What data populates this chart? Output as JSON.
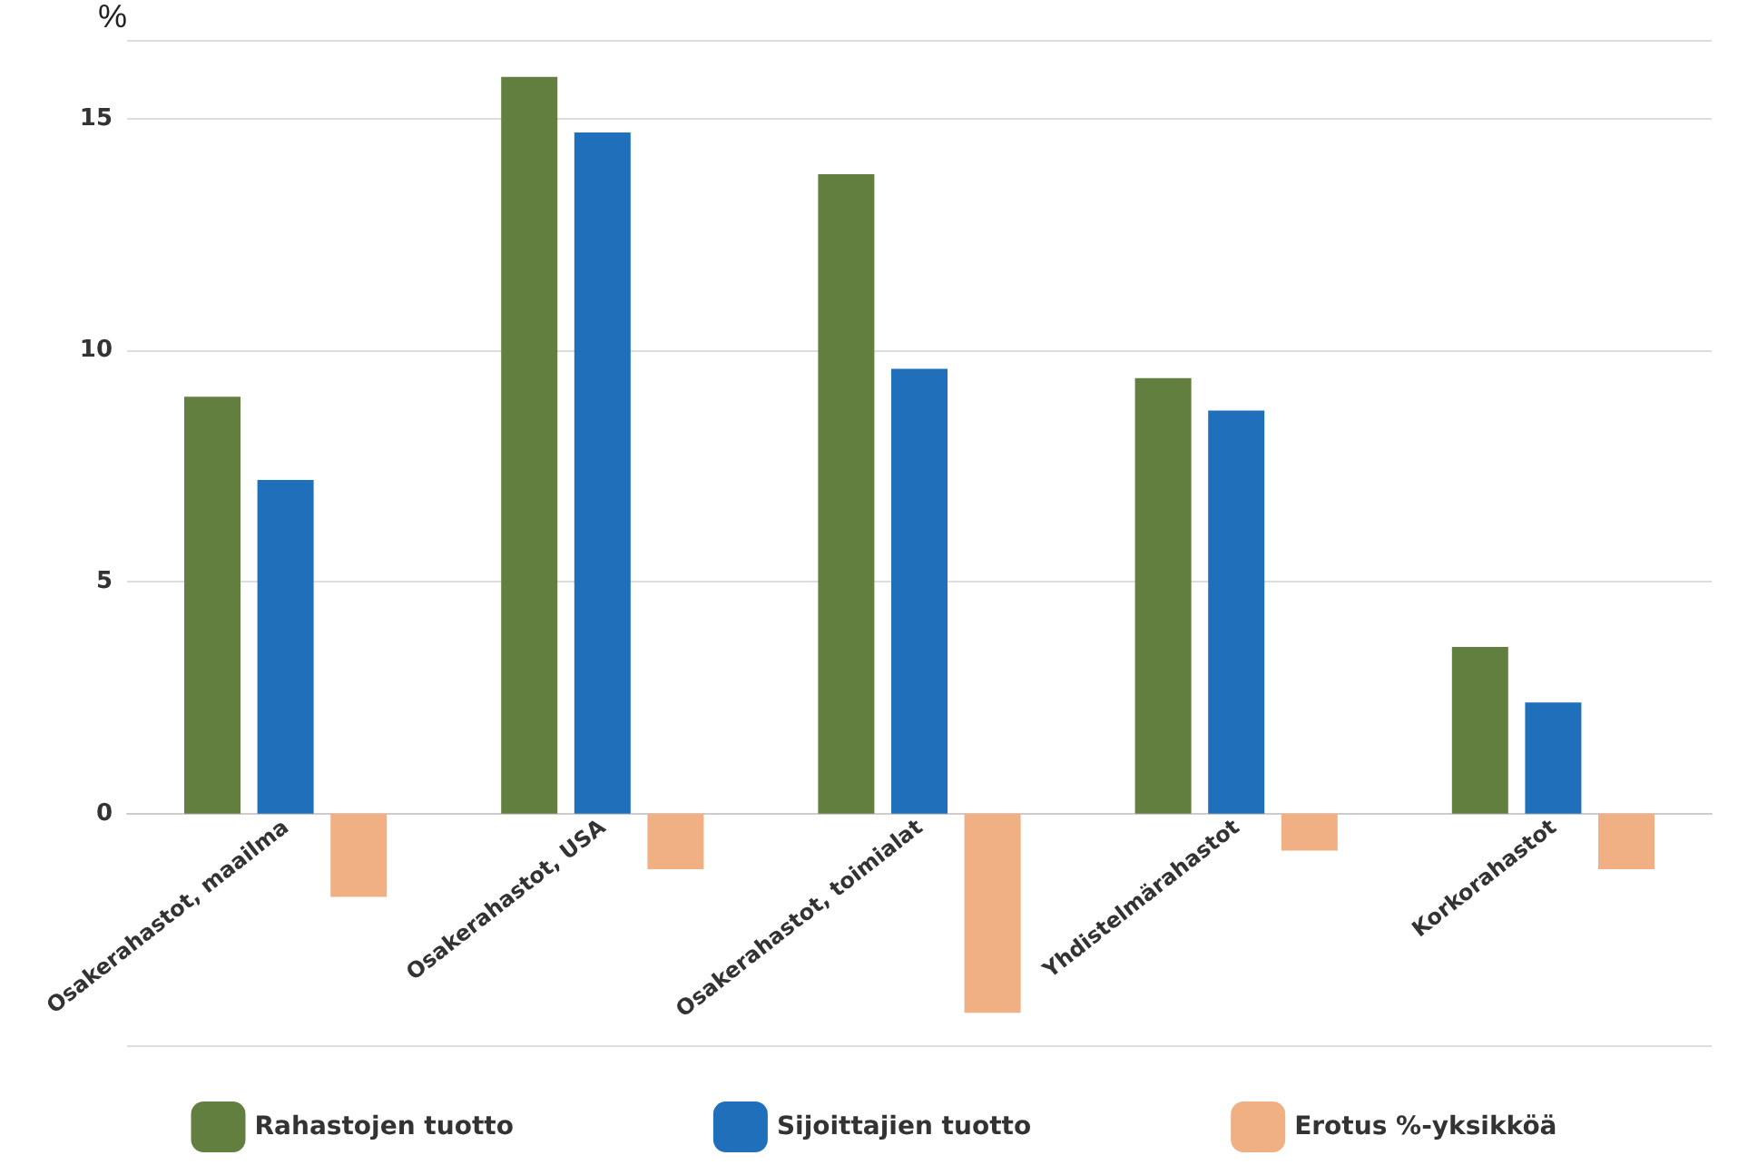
{
  "chart_data": {
    "type": "bar",
    "ylabel": "%",
    "categories": [
      "Osakerahastot, maailma",
      "Osakerahastot, USA",
      "Osakerahastot, toimialat",
      "Yhdistelmärahastot",
      "Korkorahastot"
    ],
    "series": [
      {
        "name": "Rahastojen tuotto",
        "color": "#637f3f",
        "values": [
          9.0,
          15.9,
          13.8,
          9.4,
          3.6
        ]
      },
      {
        "name": "Sijoittajien tuotto",
        "color": "#1f6fba",
        "values": [
          7.2,
          14.7,
          9.6,
          8.7,
          2.4
        ]
      },
      {
        "name": "Erotus %-yksikköä",
        "color": "#f0b084",
        "values": [
          -1.8,
          -1.2,
          -4.3,
          -0.8,
          -1.2
        ]
      }
    ],
    "ylim": [
      -5,
      16.7
    ],
    "yticks": [
      {
        "value": -5,
        "label": null
      },
      0,
      5,
      10,
      15,
      {
        "value": 16.7,
        "label": null
      }
    ],
    "grid": "y",
    "legend": "bottom"
  }
}
